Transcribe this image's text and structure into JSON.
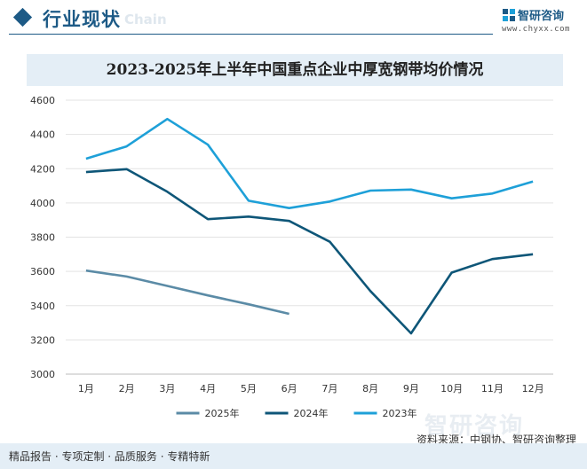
{
  "header": {
    "section_title": "行业现状",
    "watermark_en": "Chain",
    "brand_name": "智研咨询",
    "brand_url": "www.chyxx.com"
  },
  "chart_data": {
    "type": "line",
    "title": "2023-2025年上半年中国重点企业中厚宽钢带均价情况",
    "categories": [
      "1月",
      "2月",
      "3月",
      "4月",
      "5月",
      "6月",
      "7月",
      "8月",
      "9月",
      "10月",
      "11月",
      "12月"
    ],
    "ylim": [
      3000,
      4600
    ],
    "yticks": [
      3000,
      3200,
      3400,
      3600,
      3800,
      4000,
      4200,
      4400,
      4600
    ],
    "grid": true,
    "legend_position": "bottom",
    "series": [
      {
        "name": "2025年",
        "color": "#5b8ba6",
        "values": [
          3605,
          3570,
          3515,
          3460,
          3408,
          3352,
          null,
          null,
          null,
          null,
          null,
          null
        ]
      },
      {
        "name": "2024年",
        "color": "#0e5678",
        "values": [
          4180,
          4197,
          4065,
          3905,
          3920,
          3895,
          3773,
          3485,
          3238,
          3593,
          3672,
          3700
        ]
      },
      {
        "name": "2023年",
        "color": "#1ea0d8",
        "values": [
          4258,
          4330,
          4490,
          4340,
          4013,
          3970,
          4008,
          4072,
          4078,
          4027,
          4055,
          4125
        ]
      }
    ]
  },
  "footer": {
    "tagline": "精品报告 · 专项定制 · 品质服务 · 专精特新",
    "source": "资料来源：中钢协、智研咨询整理",
    "watermark_big": "智研咨询"
  }
}
